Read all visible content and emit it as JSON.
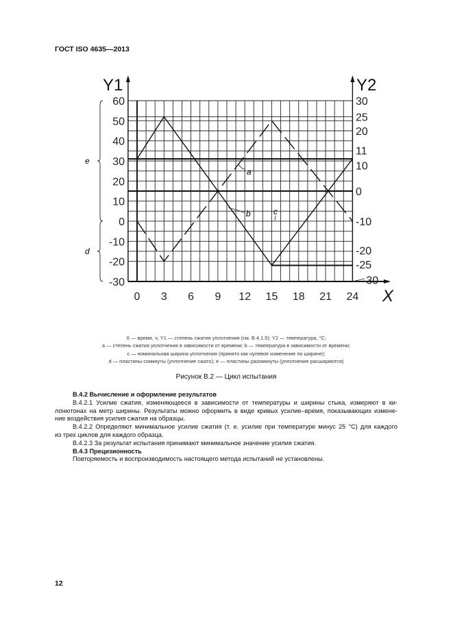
{
  "header": {
    "doc_id": "ГОСТ ISO 4635—2013"
  },
  "chart_data": {
    "type": "line",
    "xlabel": "X",
    "ylabel_left": "Y1",
    "ylabel_right": "Y2",
    "x_ticks": [
      "0",
      "3",
      "6",
      "9",
      "12",
      "15",
      "18",
      "21",
      "24"
    ],
    "xlim": [
      0,
      24
    ],
    "y1_ticks": [
      "60",
      "50",
      "40",
      "30",
      "20",
      "10",
      "0",
      "-10",
      "-20",
      "-30"
    ],
    "y1lim": [
      -30,
      60
    ],
    "y2_ticks": [
      {
        "label": "30",
        "at_y1": 60
      },
      {
        "label": "25",
        "at_y1": 52
      },
      {
        "label": "20",
        "at_y1": 45
      },
      {
        "label": "11",
        "at_y1": 33.5
      },
      {
        "label": "10",
        "at_y1": 29.5
      },
      {
        "label": "0",
        "at_y1": 15
      },
      {
        "label": "-10",
        "at_y1": 0
      },
      {
        "label": "-20",
        "at_y1": -14.5
      },
      {
        "label": "-25",
        "at_y1": -22.5
      },
      {
        "label": "-30",
        "at_y1": -27.5
      }
    ],
    "grid": true,
    "grid_y1": [
      60,
      52,
      50,
      45,
      40,
      35,
      30,
      25,
      20,
      10,
      5,
      0,
      -5,
      -10,
      -15,
      -20
    ],
    "reference_lines_y1": [
      {
        "y": 31,
        "from": -1,
        "to": 24
      },
      {
        "y": 15,
        "from": -1,
        "to": 24
      },
      {
        "y": -22,
        "from": 15,
        "to": 24
      }
    ],
    "series": [
      {
        "name": "a",
        "style": "dashed",
        "x": [
          0,
          3,
          15,
          24
        ],
        "y": [
          0,
          -20,
          50,
          0
        ]
      },
      {
        "name": "b",
        "style": "solid",
        "x": [
          0,
          3,
          15,
          24
        ],
        "y": [
          31,
          52,
          -22,
          31
        ]
      }
    ],
    "annotations": [
      {
        "text": "a",
        "x": 12.3,
        "y": 23
      },
      {
        "text": "b",
        "x": 12.3,
        "y": 2
      },
      {
        "text": "c",
        "x": 15.3,
        "y": 3
      },
      {
        "text": "e",
        "brace_from": 0,
        "brace_to": 60
      },
      {
        "text": "d",
        "brace_from": -30,
        "brace_to": 0
      }
    ]
  },
  "caption": {
    "line1": "X — время, ч; Y1 — степень сжатия уплотнения (см. В.4.1.5); Y2 — температура, °С;",
    "line2": "a — степень сжатия уплотнения в зависимости от времени; b — температура в зависимости от времени;",
    "line3": "c — номинальная ширина уплотнения (принято как нулевое изменение по ширине);",
    "line4": "d — пластины сомкнуты (уплотнение сжато); e — пластины разомкнуты (уплотнение расширяются)",
    "figure_title": "Рисунок В.2 — Цикл испытания"
  },
  "body": {
    "h1": "В.4.2 Вычисление и оформление результатов",
    "p1_l1": "В.4.2.1 Усилие сжатия, изменяющееся в зависимости от температуры и ширины стыка, измеряют в ки-",
    "p1_l2": "лонютонах на метр ширины. Результаты можно оформить в виде кривых усилие–время, показывающих измене-",
    "p1_l3": "ние воздействия усилия сжатия на образцы.",
    "p2_l1": "В.4.2.2 Определяют минимальное усилие сжатия (т. е. усилие при температуре минус 25 °С) для каждого",
    "p2_l2": "из трех циклов для каждого образца.",
    "p3": "В.4.2.3 За результат испытания принимают минимальное значение усилия сжатия.",
    "h2": "В.4.3 Прецизионность",
    "p4": "Повторяемость и воспроизводимость настоящего метода испытаний не установлены."
  },
  "footer": {
    "page_number": "12"
  }
}
